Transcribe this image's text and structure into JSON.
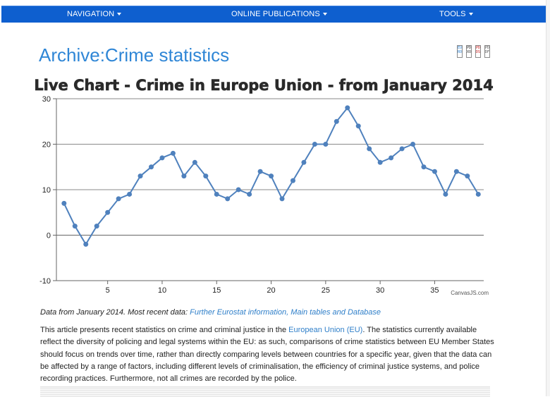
{
  "nav": {
    "items": [
      {
        "label": "NAVIGATION"
      },
      {
        "label": "ONLINE PUBLICATIONS"
      },
      {
        "label": "TOOLS"
      }
    ]
  },
  "page": {
    "title": "Archive:Crime statistics"
  },
  "doc_icons": [
    {
      "line1": "EU",
      "line2": "RO",
      "color": "#2a7fd0"
    },
    {
      "line1": "PD",
      "line2": "XO",
      "color": "#333333"
    },
    {
      "line1": "PD",
      "line2": "DS",
      "color": "#cc2222"
    },
    {
      "line1": "PD",
      "line2": "DF",
      "color": "#555555"
    }
  ],
  "chart_data": {
    "type": "line",
    "title": "Live Chart - Crime in Europe Union - from January 2014",
    "x": [
      1,
      2,
      3,
      4,
      5,
      6,
      7,
      8,
      9,
      10,
      11,
      12,
      13,
      14,
      15,
      16,
      17,
      18,
      19,
      20,
      21,
      22,
      23,
      24,
      25,
      26,
      27,
      28,
      29,
      30,
      31,
      32,
      33,
      34,
      35,
      36,
      37,
      38,
      39
    ],
    "values": [
      7,
      2,
      -2,
      2,
      5,
      8,
      9,
      13,
      15,
      17,
      18,
      13,
      16,
      13,
      9,
      8,
      10,
      9,
      14,
      13,
      8,
      12,
      16,
      20,
      20,
      25,
      28,
      24,
      19,
      16,
      17,
      19,
      20,
      15,
      14,
      9,
      14,
      13,
      9
    ],
    "xlim": [
      0.3,
      39.5
    ],
    "ylim": [
      -10,
      30
    ],
    "xticks": [
      5,
      10,
      15,
      20,
      25,
      30,
      35
    ],
    "yticks": [
      -10,
      0,
      10,
      20,
      30
    ],
    "grid": "horizontal",
    "color": "#4f81bd",
    "credit": "CanvasJS.com"
  },
  "caption": {
    "prefix": "Data from January 2014. Most recent data: ",
    "link": "Further Eurostat information, Main tables and Database"
  },
  "article": {
    "part1": "This article presents recent statistics on crime and criminal justice in the ",
    "link": "European Union (EU)",
    "part2": ". The statistics currently available reflect the diversity of policing and legal systems within the EU: as such, comparisons of crime statistics between EU Member States should focus on trends over time, rather than directly comparing levels between countries for a specific year, given that the data can be affected by a range of factors, including different levels of criminalisation, the efficiency of criminal justice systems, and police recording practices. Furthermore, not all crimes are recorded by the police."
  }
}
